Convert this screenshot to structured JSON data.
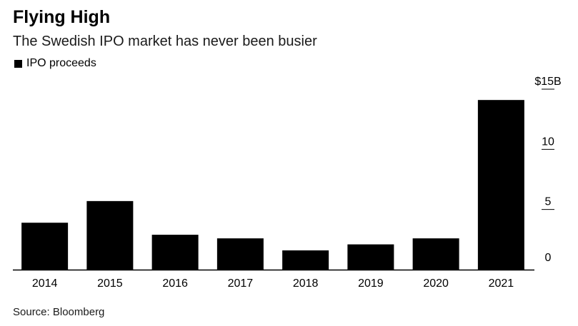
{
  "chart_data": {
    "type": "bar",
    "title": "Flying High",
    "subtitle": "The Swedish IPO market has never been busier",
    "legend": [
      "IPO proceeds"
    ],
    "legend_placement": "top-left",
    "categories": [
      "2014",
      "2015",
      "2016",
      "2017",
      "2018",
      "2019",
      "2020",
      "2021"
    ],
    "series": [
      {
        "name": "IPO proceeds",
        "values": [
          3.9,
          5.7,
          2.9,
          2.6,
          1.6,
          2.1,
          2.6,
          14.1
        ]
      }
    ],
    "y_axis": {
      "position": "right",
      "ylim": [
        0,
        15
      ],
      "ticks": [
        0,
        5,
        10,
        15
      ],
      "tick_labels": [
        "0",
        "5",
        "10",
        "$15B"
      ]
    },
    "grid": false,
    "bar_color": "#000000",
    "source": "Source: Bloomberg"
  }
}
